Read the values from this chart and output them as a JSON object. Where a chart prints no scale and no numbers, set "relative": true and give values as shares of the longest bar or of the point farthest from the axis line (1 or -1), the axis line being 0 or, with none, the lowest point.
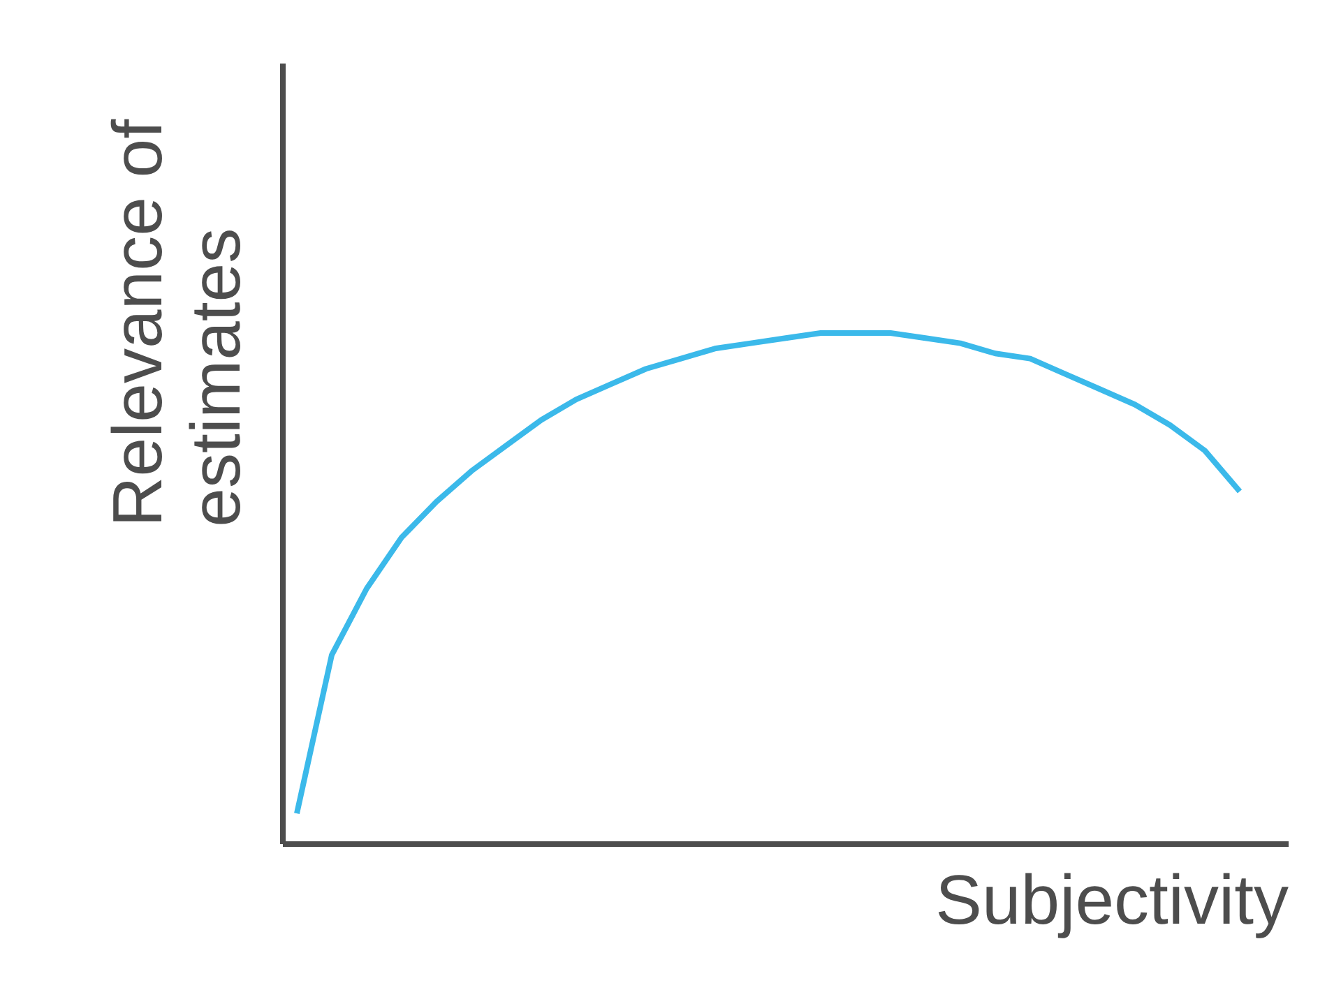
{
  "chart_data": {
    "type": "line",
    "relative": true,
    "xlabel": "Subjectivity",
    "ylabel": "Relevance of\nestimates",
    "categories": [
      null,
      null,
      null,
      null,
      null,
      null,
      null,
      null,
      null,
      null,
      null,
      null,
      null,
      null,
      null,
      null,
      null,
      null,
      null,
      null,
      null,
      null,
      null,
      null,
      null,
      null,
      null,
      null
    ],
    "series": [
      {
        "color": "#3bb9ea",
        "values": [
          0.06,
          0.37,
          0.5,
          0.6,
          0.67,
          0.73,
          0.78,
          0.83,
          0.87,
          0.9,
          0.93,
          0.95,
          0.97,
          0.98,
          0.99,
          1.0,
          1.0,
          1.0,
          0.99,
          0.98,
          0.96,
          0.95,
          0.92,
          0.89,
          0.86,
          0.82,
          0.77,
          0.69
        ]
      }
    ],
    "grid": false
  }
}
